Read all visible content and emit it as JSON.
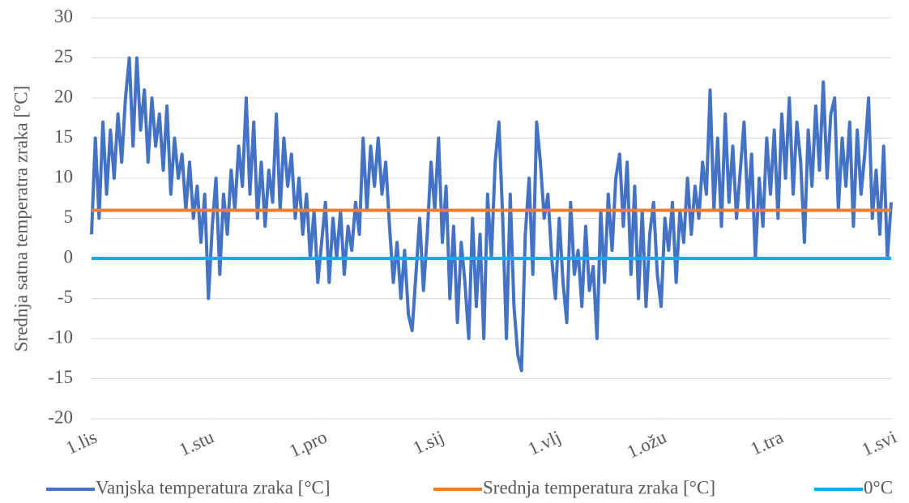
{
  "chart_data": {
    "type": "line",
    "y_label": "Srednja satna temperatra zraka [°C]",
    "xlim": [
      0,
      212
    ],
    "xticks": [
      {
        "value": 0,
        "label": "1.lis"
      },
      {
        "value": 31,
        "label": "1.stu"
      },
      {
        "value": 61,
        "label": "1.pro"
      },
      {
        "value": 92,
        "label": "1.sij"
      },
      {
        "value": 123,
        "label": "1.vlj"
      },
      {
        "value": 151,
        "label": "1.ožu"
      },
      {
        "value": 182,
        "label": "1.tra"
      },
      {
        "value": 212,
        "label": "1.svi"
      }
    ],
    "ylim": [
      -20,
      30
    ],
    "yticks": [
      -20,
      -15,
      -10,
      -5,
      0,
      5,
      10,
      15,
      20,
      25,
      30
    ],
    "grid": true,
    "legend": "bottom",
    "series": [
      {
        "name": "Vanjska temperatura zraka [°C]",
        "color": "#4472c4",
        "x": [
          0,
          1,
          2,
          3,
          4,
          5,
          6,
          7,
          8,
          9,
          10,
          11,
          12,
          13,
          14,
          15,
          16,
          17,
          18,
          19,
          20,
          21,
          22,
          23,
          24,
          25,
          26,
          27,
          28,
          29,
          30,
          31,
          32,
          33,
          34,
          35,
          36,
          37,
          38,
          39,
          40,
          41,
          42,
          43,
          44,
          45,
          46,
          47,
          48,
          49,
          50,
          51,
          52,
          53,
          54,
          55,
          56,
          57,
          58,
          59,
          60,
          61,
          62,
          63,
          64,
          65,
          66,
          67,
          68,
          69,
          70,
          71,
          72,
          73,
          74,
          75,
          76,
          77,
          78,
          79,
          80,
          81,
          82,
          83,
          84,
          85,
          86,
          87,
          88,
          89,
          90,
          91,
          92,
          93,
          94,
          95,
          96,
          97,
          98,
          99,
          100,
          101,
          102,
          103,
          104,
          105,
          106,
          107,
          108,
          109,
          110,
          111,
          112,
          113,
          114,
          115,
          116,
          117,
          118,
          119,
          120,
          121,
          122,
          123,
          124,
          125,
          126,
          127,
          128,
          129,
          130,
          131,
          132,
          133,
          134,
          135,
          136,
          137,
          138,
          139,
          140,
          141,
          142,
          143,
          144,
          145,
          146,
          147,
          148,
          149,
          150,
          151,
          152,
          153,
          154,
          155,
          156,
          157,
          158,
          159,
          160,
          161,
          162,
          163,
          164,
          165,
          166,
          167,
          168,
          169,
          170,
          171,
          172,
          173,
          174,
          175,
          176,
          177,
          178,
          179,
          180,
          181,
          182,
          183,
          184,
          185,
          186,
          187,
          188,
          189,
          190,
          191,
          192,
          193,
          194,
          195,
          196,
          197,
          198,
          199,
          200,
          201,
          202,
          203,
          204,
          205,
          206,
          207,
          208,
          209,
          210,
          211,
          212
        ],
        "values": [
          3,
          15,
          5,
          17,
          8,
          16,
          10,
          18,
          12,
          20,
          25,
          14,
          25,
          16,
          21,
          12,
          20,
          14,
          18,
          11,
          19,
          8,
          15,
          10,
          13,
          6,
          12,
          5,
          9,
          2,
          8,
          -5,
          4,
          10,
          -2,
          8,
          3,
          11,
          6,
          14,
          9,
          20,
          8,
          17,
          5,
          12,
          4,
          11,
          7,
          18,
          6,
          15,
          9,
          13,
          5,
          10,
          3,
          8,
          0,
          6,
          -3,
          2,
          7,
          -3,
          5,
          0,
          6,
          -2,
          4,
          1,
          7,
          3,
          15,
          6,
          14,
          9,
          15,
          8,
          12,
          4,
          -3,
          2,
          -5,
          1,
          -7,
          -9,
          -2,
          5,
          -4,
          3,
          12,
          6,
          15,
          2,
          9,
          -5,
          4,
          -8,
          2,
          -3,
          -10,
          5,
          -6,
          3,
          -10,
          8,
          0,
          12,
          17,
          5,
          -10,
          8,
          -6,
          -12,
          -14,
          3,
          10,
          -2,
          17,
          12,
          5,
          8,
          0,
          -5,
          5,
          -3,
          -8,
          7,
          -2,
          1,
          -6,
          4,
          -4,
          -1,
          -10,
          6,
          -3,
          8,
          1,
          10,
          13,
          4,
          12,
          -2,
          9,
          -5,
          6,
          -6,
          3,
          7,
          -2,
          -6,
          5,
          1,
          7,
          -3,
          6,
          2,
          10,
          3,
          9,
          5,
          12,
          8,
          21,
          6,
          15,
          4,
          18,
          7,
          14,
          5,
          11,
          17,
          6,
          13,
          0,
          10,
          4,
          15,
          8,
          16,
          5,
          18,
          10,
          20,
          8,
          17,
          12,
          2,
          16,
          9,
          19,
          11,
          22,
          10,
          18,
          20,
          6,
          15,
          9,
          17,
          4,
          16,
          8,
          13,
          20,
          5,
          11,
          3,
          14,
          0,
          7
        ]
      },
      {
        "name": "Srednja temperatura zraka [°C]",
        "color": "#ed7d31",
        "x": [
          0,
          212
        ],
        "values": [
          6,
          6
        ]
      },
      {
        "name": "0°C",
        "color": "#00b0f0",
        "x": [
          0,
          212
        ],
        "values": [
          0,
          0
        ]
      }
    ]
  }
}
